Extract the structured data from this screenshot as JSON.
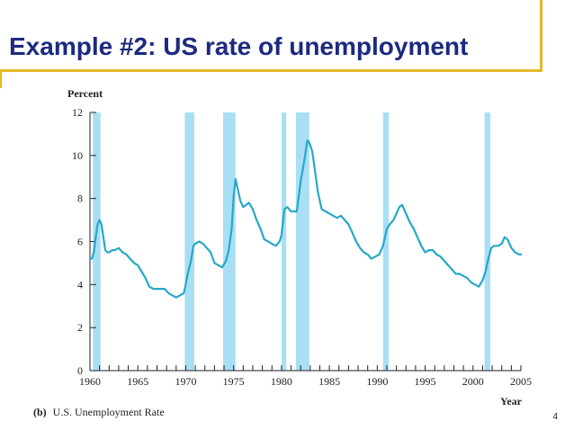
{
  "slide": {
    "title": "Example #2: US rate of unemployment",
    "page_number": "4"
  },
  "colors": {
    "title": "#1c2a80",
    "rule": "#e3ba28",
    "line": "#26a8c8",
    "recession": "#a8dff5"
  },
  "chart_data": {
    "type": "line",
    "ylabel": "Percent",
    "xlabel": "Year",
    "caption_prefix": "(b)",
    "caption": "U.S. Unemployment Rate",
    "xlim": [
      1960,
      2005
    ],
    "ylim": [
      0,
      12
    ],
    "x_ticks": [
      "1960",
      "1965",
      "1970",
      "1975",
      "1980",
      "1985",
      "1990",
      "1995",
      "2000",
      "2005"
    ],
    "y_ticks": [
      "0",
      "2",
      "4",
      "6",
      "8",
      "10",
      "12"
    ],
    "recessions": [
      [
        1960.3,
        1961.1
      ],
      [
        1969.9,
        1970.9
      ],
      [
        1973.9,
        1975.2
      ],
      [
        1980.0,
        1980.5
      ],
      [
        1981.5,
        1982.9
      ],
      [
        1990.6,
        1991.2
      ],
      [
        2001.2,
        2001.8
      ]
    ],
    "series": [
      {
        "x": [
          1960.0,
          1960.2,
          1960.4,
          1960.6,
          1960.8,
          1961.0,
          1961.2,
          1961.4,
          1961.6,
          1961.8,
          1962.0,
          1962.3,
          1962.6,
          1963.0,
          1963.4,
          1963.8,
          1964.2,
          1964.6,
          1965.0,
          1965.4,
          1965.8,
          1966.2,
          1966.6,
          1967.0,
          1967.4,
          1967.8,
          1968.2,
          1968.6,
          1969.0,
          1969.4,
          1969.8,
          1970.0,
          1970.2,
          1970.5,
          1970.8,
          1971.0,
          1971.4,
          1971.8,
          1972.2,
          1972.6,
          1973.0,
          1973.4,
          1973.8,
          1974.2,
          1974.5,
          1974.8,
          1975.0,
          1975.2,
          1975.4,
          1975.7,
          1976.0,
          1976.3,
          1976.6,
          1977.0,
          1977.4,
          1977.8,
          1978.2,
          1978.6,
          1979.0,
          1979.4,
          1979.8,
          1980.0,
          1980.3,
          1980.6,
          1981.0,
          1981.3,
          1981.6,
          1982.0,
          1982.4,
          1982.7,
          1982.9,
          1983.2,
          1983.5,
          1983.8,
          1984.2,
          1984.6,
          1985.0,
          1985.4,
          1985.8,
          1986.2,
          1986.6,
          1987.0,
          1987.4,
          1987.8,
          1988.2,
          1988.6,
          1989.0,
          1989.4,
          1989.8,
          1990.2,
          1990.6,
          1991.0,
          1991.3,
          1991.7,
          1992.0,
          1992.3,
          1992.6,
          1993.0,
          1993.4,
          1993.8,
          1994.2,
          1994.6,
          1995.0,
          1995.4,
          1995.8,
          1996.2,
          1996.6,
          1997.0,
          1997.4,
          1997.8,
          1998.2,
          1998.6,
          1999.0,
          1999.4,
          1999.8,
          2000.2,
          2000.6,
          2001.0,
          2001.3,
          2001.6,
          2001.9,
          2002.2,
          2002.6,
          2003.0,
          2003.3,
          2003.6,
          2004.0,
          2004.4,
          2004.8,
          2005.0
        ],
        "y": [
          5.2,
          5.2,
          5.5,
          6.2,
          6.8,
          7.0,
          6.8,
          6.2,
          5.6,
          5.5,
          5.5,
          5.6,
          5.6,
          5.7,
          5.5,
          5.4,
          5.2,
          5.0,
          4.9,
          4.6,
          4.3,
          3.9,
          3.8,
          3.8,
          3.8,
          3.8,
          3.6,
          3.5,
          3.4,
          3.5,
          3.6,
          4.0,
          4.5,
          5.0,
          5.8,
          5.9,
          6.0,
          5.9,
          5.7,
          5.5,
          5.0,
          4.9,
          4.8,
          5.1,
          5.6,
          6.6,
          8.1,
          8.9,
          8.5,
          7.9,
          7.6,
          7.7,
          7.8,
          7.5,
          7.0,
          6.6,
          6.1,
          6.0,
          5.9,
          5.8,
          6.0,
          6.3,
          7.5,
          7.6,
          7.4,
          7.4,
          7.4,
          8.8,
          9.8,
          10.7,
          10.6,
          10.2,
          9.3,
          8.3,
          7.5,
          7.4,
          7.3,
          7.2,
          7.1,
          7.2,
          7.0,
          6.8,
          6.4,
          6.0,
          5.7,
          5.5,
          5.4,
          5.2,
          5.3,
          5.4,
          5.8,
          6.6,
          6.8,
          7.0,
          7.3,
          7.6,
          7.7,
          7.3,
          6.9,
          6.6,
          6.2,
          5.8,
          5.5,
          5.6,
          5.6,
          5.4,
          5.3,
          5.1,
          4.9,
          4.7,
          4.5,
          4.5,
          4.4,
          4.3,
          4.1,
          4.0,
          3.9,
          4.2,
          4.6,
          5.2,
          5.7,
          5.8,
          5.8,
          5.9,
          6.2,
          6.1,
          5.7,
          5.5,
          5.4,
          5.4
        ]
      }
    ]
  }
}
